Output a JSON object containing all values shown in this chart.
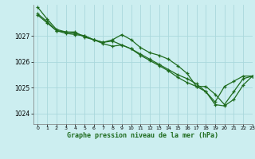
{
  "title": "Graphe pression niveau de la mer (hPa)",
  "background_color": "#cceef0",
  "grid_color": "#aad8dc",
  "line_color": "#1e6b1e",
  "marker_color": "#1e6b1e",
  "xlim": [
    -0.5,
    23
  ],
  "ylim": [
    1023.6,
    1028.2
  ],
  "yticks": [
    1024,
    1025,
    1026,
    1027
  ],
  "xticks": [
    0,
    1,
    2,
    3,
    4,
    5,
    6,
    7,
    8,
    9,
    10,
    11,
    12,
    13,
    14,
    15,
    16,
    17,
    18,
    19,
    20,
    21,
    22,
    23
  ],
  "series1": {
    "x": [
      0,
      1,
      2,
      3,
      4,
      5,
      6,
      7,
      8,
      9,
      10,
      11,
      12,
      13,
      14,
      15,
      16,
      17,
      18,
      19,
      20,
      21,
      22,
      23
    ],
    "y": [
      1028.1,
      1027.65,
      1027.25,
      1027.15,
      1027.15,
      1026.95,
      1026.85,
      1026.75,
      1026.85,
      1027.05,
      1026.85,
      1026.55,
      1026.35,
      1026.25,
      1026.1,
      1025.85,
      1025.55,
      1025.05,
      1025.05,
      1024.75,
      1024.35,
      1024.85,
      1025.35,
      1025.45
    ]
  },
  "series2": {
    "x": [
      0,
      1,
      2,
      3,
      4,
      5,
      6,
      7,
      8,
      9,
      10,
      11,
      12,
      13,
      14,
      15,
      16,
      17,
      18,
      19,
      20,
      21,
      22,
      23
    ],
    "y": [
      1027.85,
      1027.55,
      1027.2,
      1027.15,
      1027.1,
      1027.0,
      1026.85,
      1026.75,
      1026.8,
      1026.65,
      1026.5,
      1026.3,
      1026.1,
      1025.9,
      1025.7,
      1025.5,
      1025.35,
      1025.15,
      1024.85,
      1024.45,
      1025.05,
      1025.25,
      1025.45,
      1025.45
    ]
  },
  "series3": {
    "x": [
      0,
      1,
      2,
      3,
      4,
      5,
      6,
      7,
      8,
      9,
      10,
      11,
      12,
      13,
      14,
      15,
      16,
      17,
      18,
      19,
      20,
      21,
      22,
      23
    ],
    "y": [
      1027.8,
      1027.5,
      1027.2,
      1027.1,
      1027.05,
      1027.0,
      1026.85,
      1026.7,
      1026.6,
      1026.65,
      1026.5,
      1026.25,
      1026.05,
      1025.85,
      1025.65,
      1025.4,
      1025.2,
      1025.05,
      1024.85,
      1024.35,
      1024.3,
      1024.55,
      1025.1,
      1025.45
    ]
  }
}
